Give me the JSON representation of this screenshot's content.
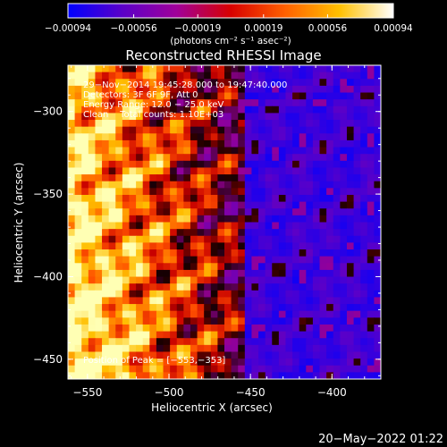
{
  "chart_data": {
    "type": "heatmap",
    "title": "Reconstructed RHESSI Image",
    "xlabel": "Heliocentric X (arcsec)",
    "ylabel": "Heliocentric Y (arcsec)",
    "xlim": [
      -562,
      -370
    ],
    "ylim": [
      -462,
      -272
    ],
    "x_ticks": [
      -550,
      -500,
      -450,
      -400
    ],
    "x_tick_labels": [
      "−550",
      "−500",
      "−450",
      "−400"
    ],
    "y_ticks": [
      -300,
      -350,
      -400,
      -450
    ],
    "y_tick_labels": [
      "−300",
      "−350",
      "−400",
      "−450"
    ],
    "colorbar": {
      "range": [
        -0.00094,
        0.00094
      ],
      "ticks": [
        -0.00094,
        -0.00056,
        -0.00019,
        0.00019,
        0.00056,
        0.00094
      ],
      "tick_labels": [
        "−0.00094",
        "−0.00056",
        "−0.00019",
        "0.00019",
        "0.00056",
        "0.00094"
      ],
      "units_label": "(photons cm⁻² s⁻¹ asec⁻²)",
      "colors": [
        "#0000ff",
        "#5a00c8",
        "#a0009a",
        "#d80000",
        "#ff6000",
        "#ffc000",
        "#ffffff"
      ]
    },
    "annotations": [
      "29−Nov−2014 19:45:28.000 to 19:47:40.000",
      "Detectors: 3F 6F 9F, Att 0",
      "Energy Range: 12.0 − 25.0 keV",
      "Clean    Total counts: 1.10E+03"
    ],
    "peak_text": "Position of Peak = [−553,−353]",
    "peak_position": [
      -553,
      -353
    ],
    "grid": false
  },
  "footer": {
    "timestamp": "20−May−2022 01:22"
  }
}
